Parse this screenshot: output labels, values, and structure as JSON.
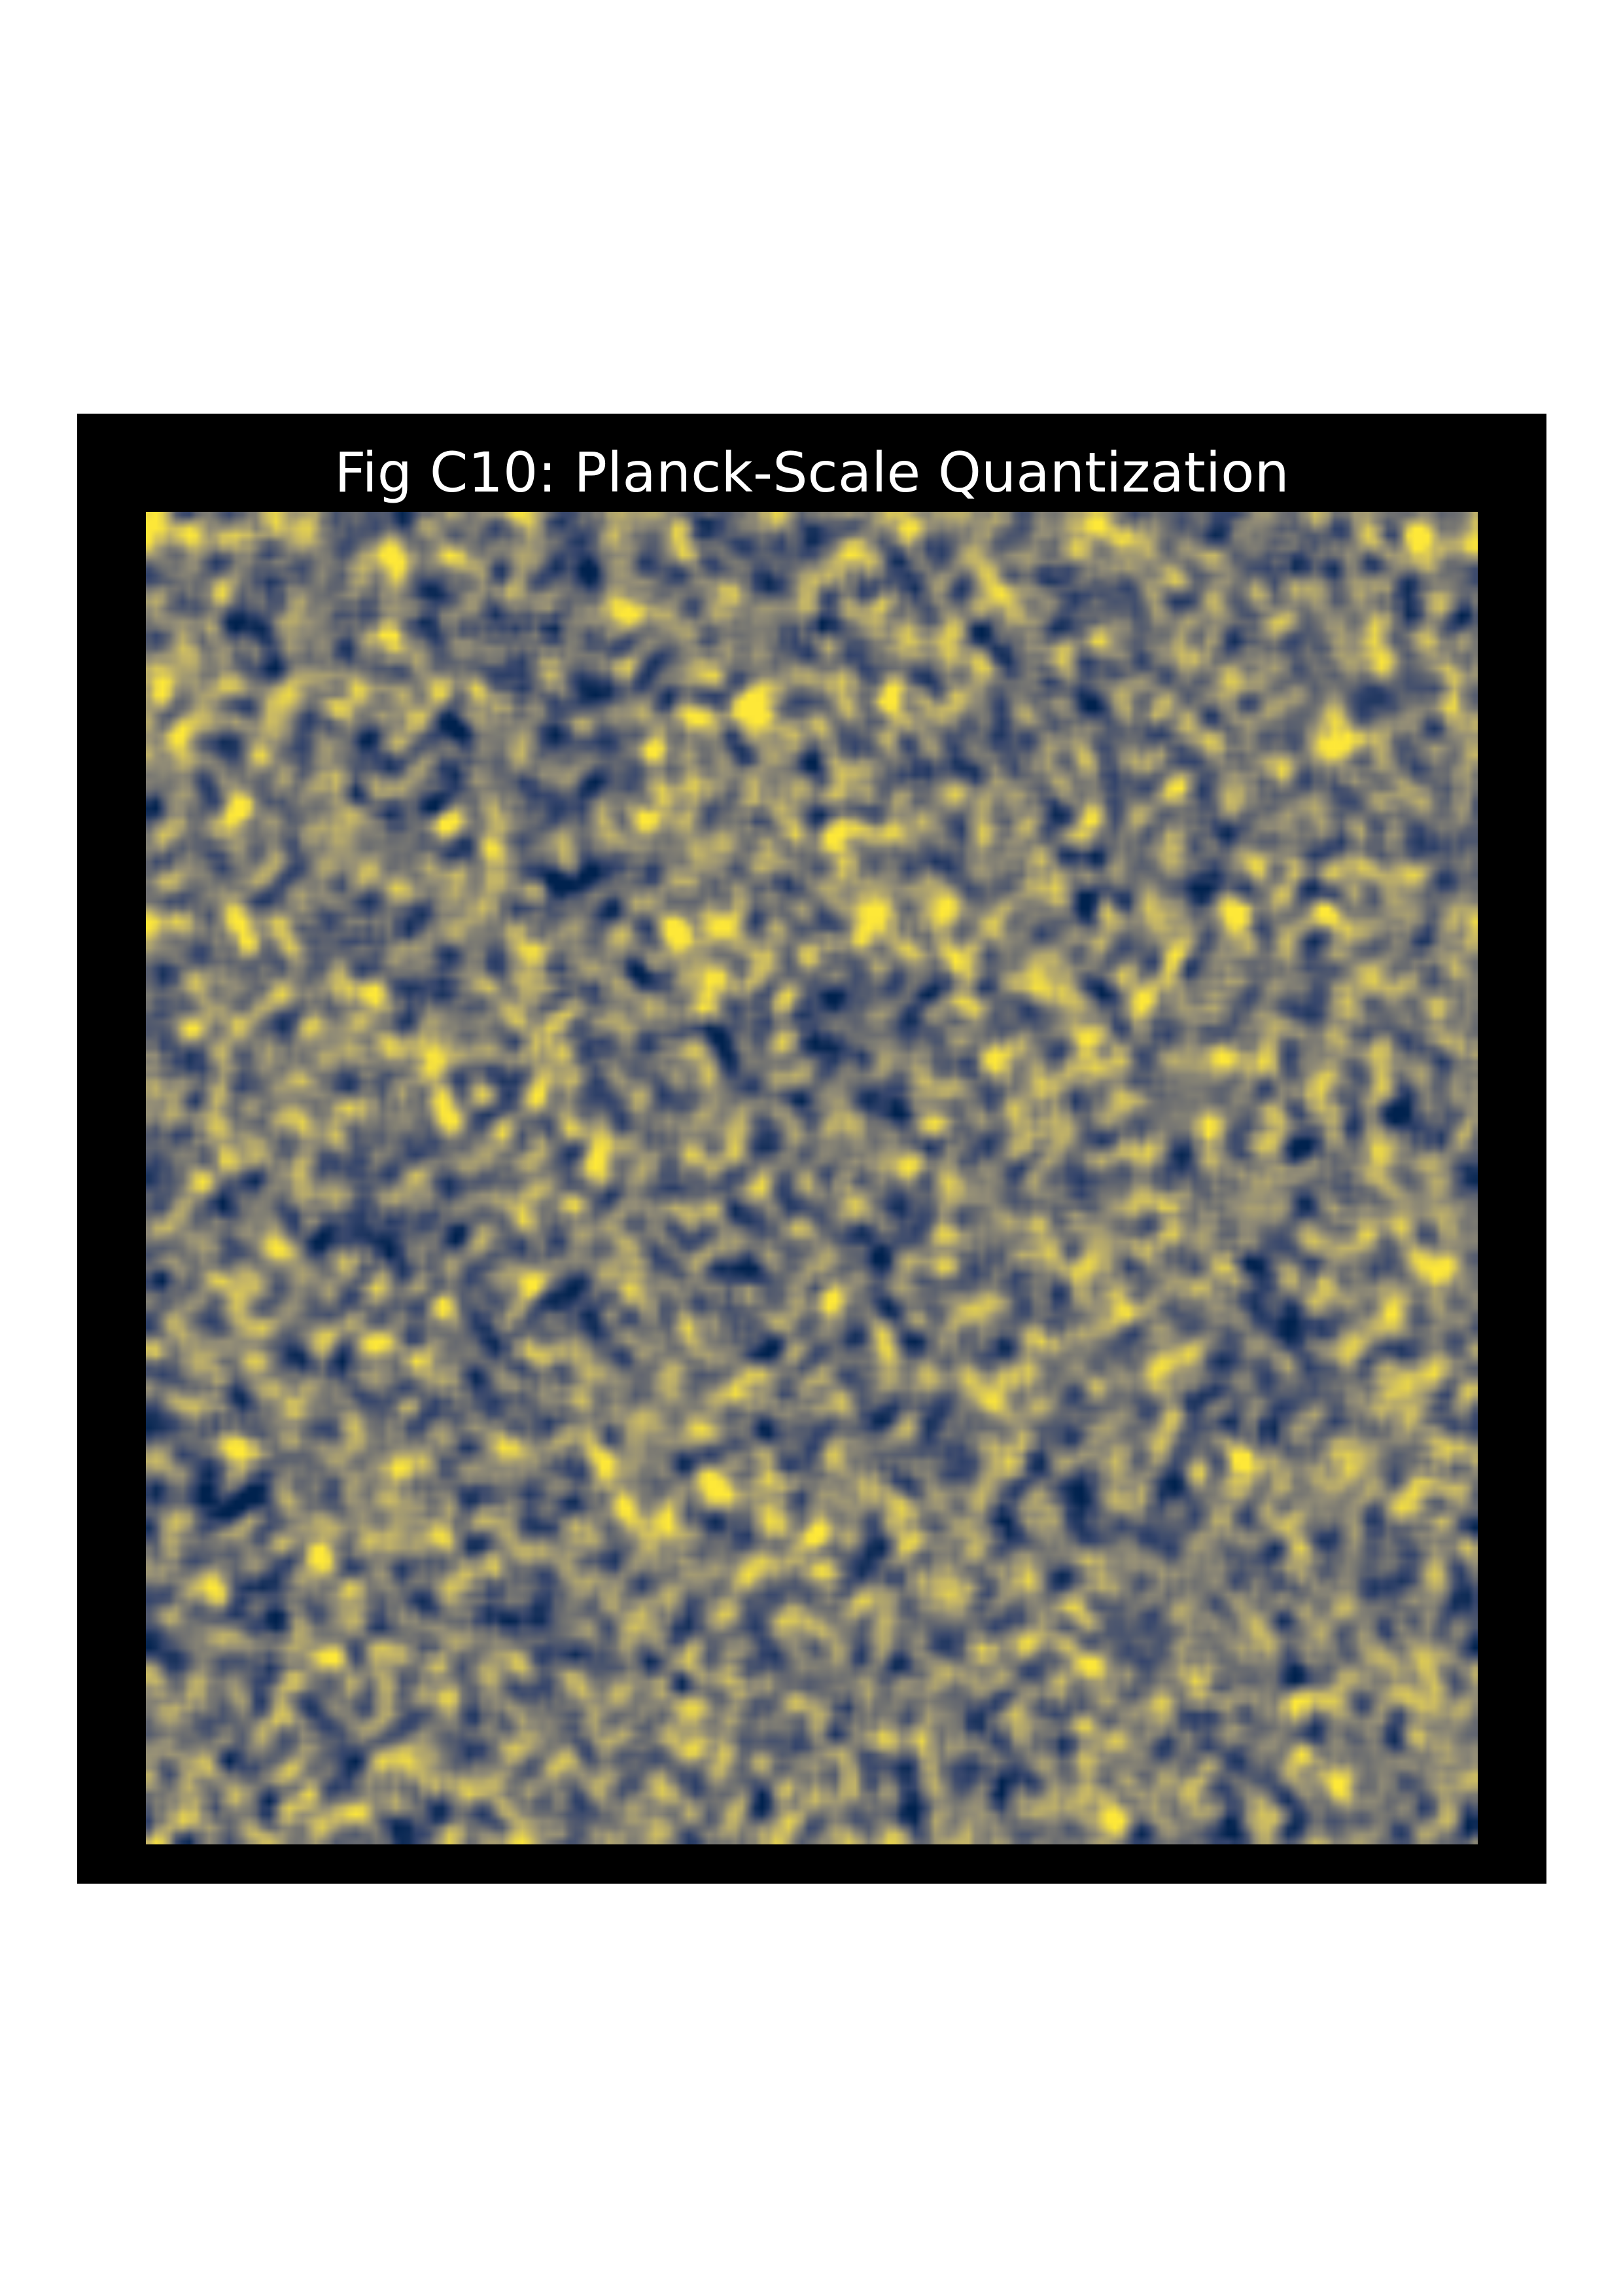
{
  "chart_data": {
    "type": "heatmap",
    "title": "Fig C10: Planck-Scale Quantization",
    "xlabel": "",
    "ylabel": "",
    "axes": "off",
    "grid": false,
    "colorbar": false,
    "colormap": "cividis",
    "colormap_stops": [
      "#00224e",
      "#35456c",
      "#666970",
      "#948e77",
      "#c8b866",
      "#fee838"
    ],
    "field": "random Gaussian-smoothed noise",
    "grid_resolution": [
      200,
      200
    ],
    "value_range": [
      0,
      1
    ]
  },
  "colors": {
    "figure_background": "#000000",
    "title_color": "#ffffff",
    "page_background": "#ffffff"
  }
}
